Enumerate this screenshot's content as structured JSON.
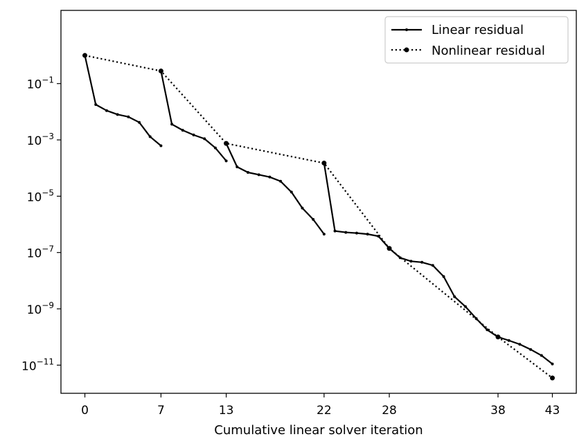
{
  "chart_data": {
    "type": "line",
    "xlabel": "Cumulative linear solver iteration",
    "ylabel": "",
    "title": "",
    "y_scale": "log",
    "xlim": [
      -2.2,
      45.2
    ],
    "ylim_exponents": [
      -12.0,
      1.6
    ],
    "x_ticks": [
      0,
      7,
      13,
      22,
      28,
      38,
      43
    ],
    "y_ticks": [
      {
        "exp": -1,
        "base": "10",
        "sup": "−1"
      },
      {
        "exp": -3,
        "base": "10",
        "sup": "−3"
      },
      {
        "exp": -5,
        "base": "10",
        "sup": "−5"
      },
      {
        "exp": -7,
        "base": "10",
        "sup": "−7"
      },
      {
        "exp": -9,
        "base": "10",
        "sup": "−9"
      },
      {
        "exp": -11,
        "base": "10",
        "sup": "−11"
      }
    ],
    "grid": false,
    "legend_position": "top-right",
    "series": [
      {
        "name": "Linear residual",
        "style": "solid",
        "marker_size": 2,
        "segments": [
          [
            [
              0,
              1.0
            ],
            [
              1,
              0.018
            ],
            [
              2,
              0.011
            ],
            [
              3,
              0.008
            ],
            [
              4,
              0.0066
            ],
            [
              5,
              0.0042
            ],
            [
              6,
              0.0013
            ],
            [
              7,
              0.00062
            ]
          ],
          [
            [
              7,
              0.28
            ],
            [
              8,
              0.0036
            ],
            [
              9,
              0.0022
            ],
            [
              10,
              0.0015
            ],
            [
              11,
              0.0011
            ],
            [
              12,
              0.00052
            ],
            [
              13,
              0.00018
            ]
          ],
          [
            [
              13,
              0.00075
            ],
            [
              14,
              0.00011
            ],
            [
              15,
              7e-05
            ],
            [
              16,
              5.8e-05
            ],
            [
              17,
              4.8e-05
            ],
            [
              18,
              3.4e-05
            ],
            [
              19,
              1.4e-05
            ],
            [
              20,
              3.8e-06
            ],
            [
              21,
              1.5e-06
            ],
            [
              22,
              4.5e-07
            ]
          ],
          [
            [
              22,
              0.00015
            ],
            [
              23,
              5.8e-07
            ],
            [
              24,
              5.2e-07
            ],
            [
              25,
              4.9e-07
            ],
            [
              26,
              4.5e-07
            ],
            [
              27,
              3.8e-07
            ],
            [
              28,
              1.4e-07
            ],
            [
              29,
              6.5e-08
            ],
            [
              30,
              4.9e-08
            ],
            [
              31,
              4.5e-08
            ],
            [
              32,
              3.5e-08
            ],
            [
              33,
              1.4e-08
            ],
            [
              34,
              2.7e-09
            ],
            [
              35,
              1.2e-09
            ],
            [
              36,
              4.5e-10
            ],
            [
              37,
              1.8e-10
            ],
            [
              38,
              1e-10
            ],
            [
              39,
              7.5e-11
            ],
            [
              40,
              5.5e-11
            ],
            [
              41,
              3.6e-11
            ],
            [
              42,
              2.2e-11
            ],
            [
              43,
              1.1e-11
            ]
          ]
        ]
      },
      {
        "name": "Nonlinear residual",
        "style": "dotted",
        "marker_size": 4,
        "points": [
          [
            0,
            1.0
          ],
          [
            7,
            0.28
          ],
          [
            13,
            0.00075
          ],
          [
            22,
            0.00015
          ],
          [
            28,
            1.4e-07
          ],
          [
            38,
            1e-10
          ],
          [
            43,
            3.5e-12
          ]
        ]
      }
    ]
  }
}
